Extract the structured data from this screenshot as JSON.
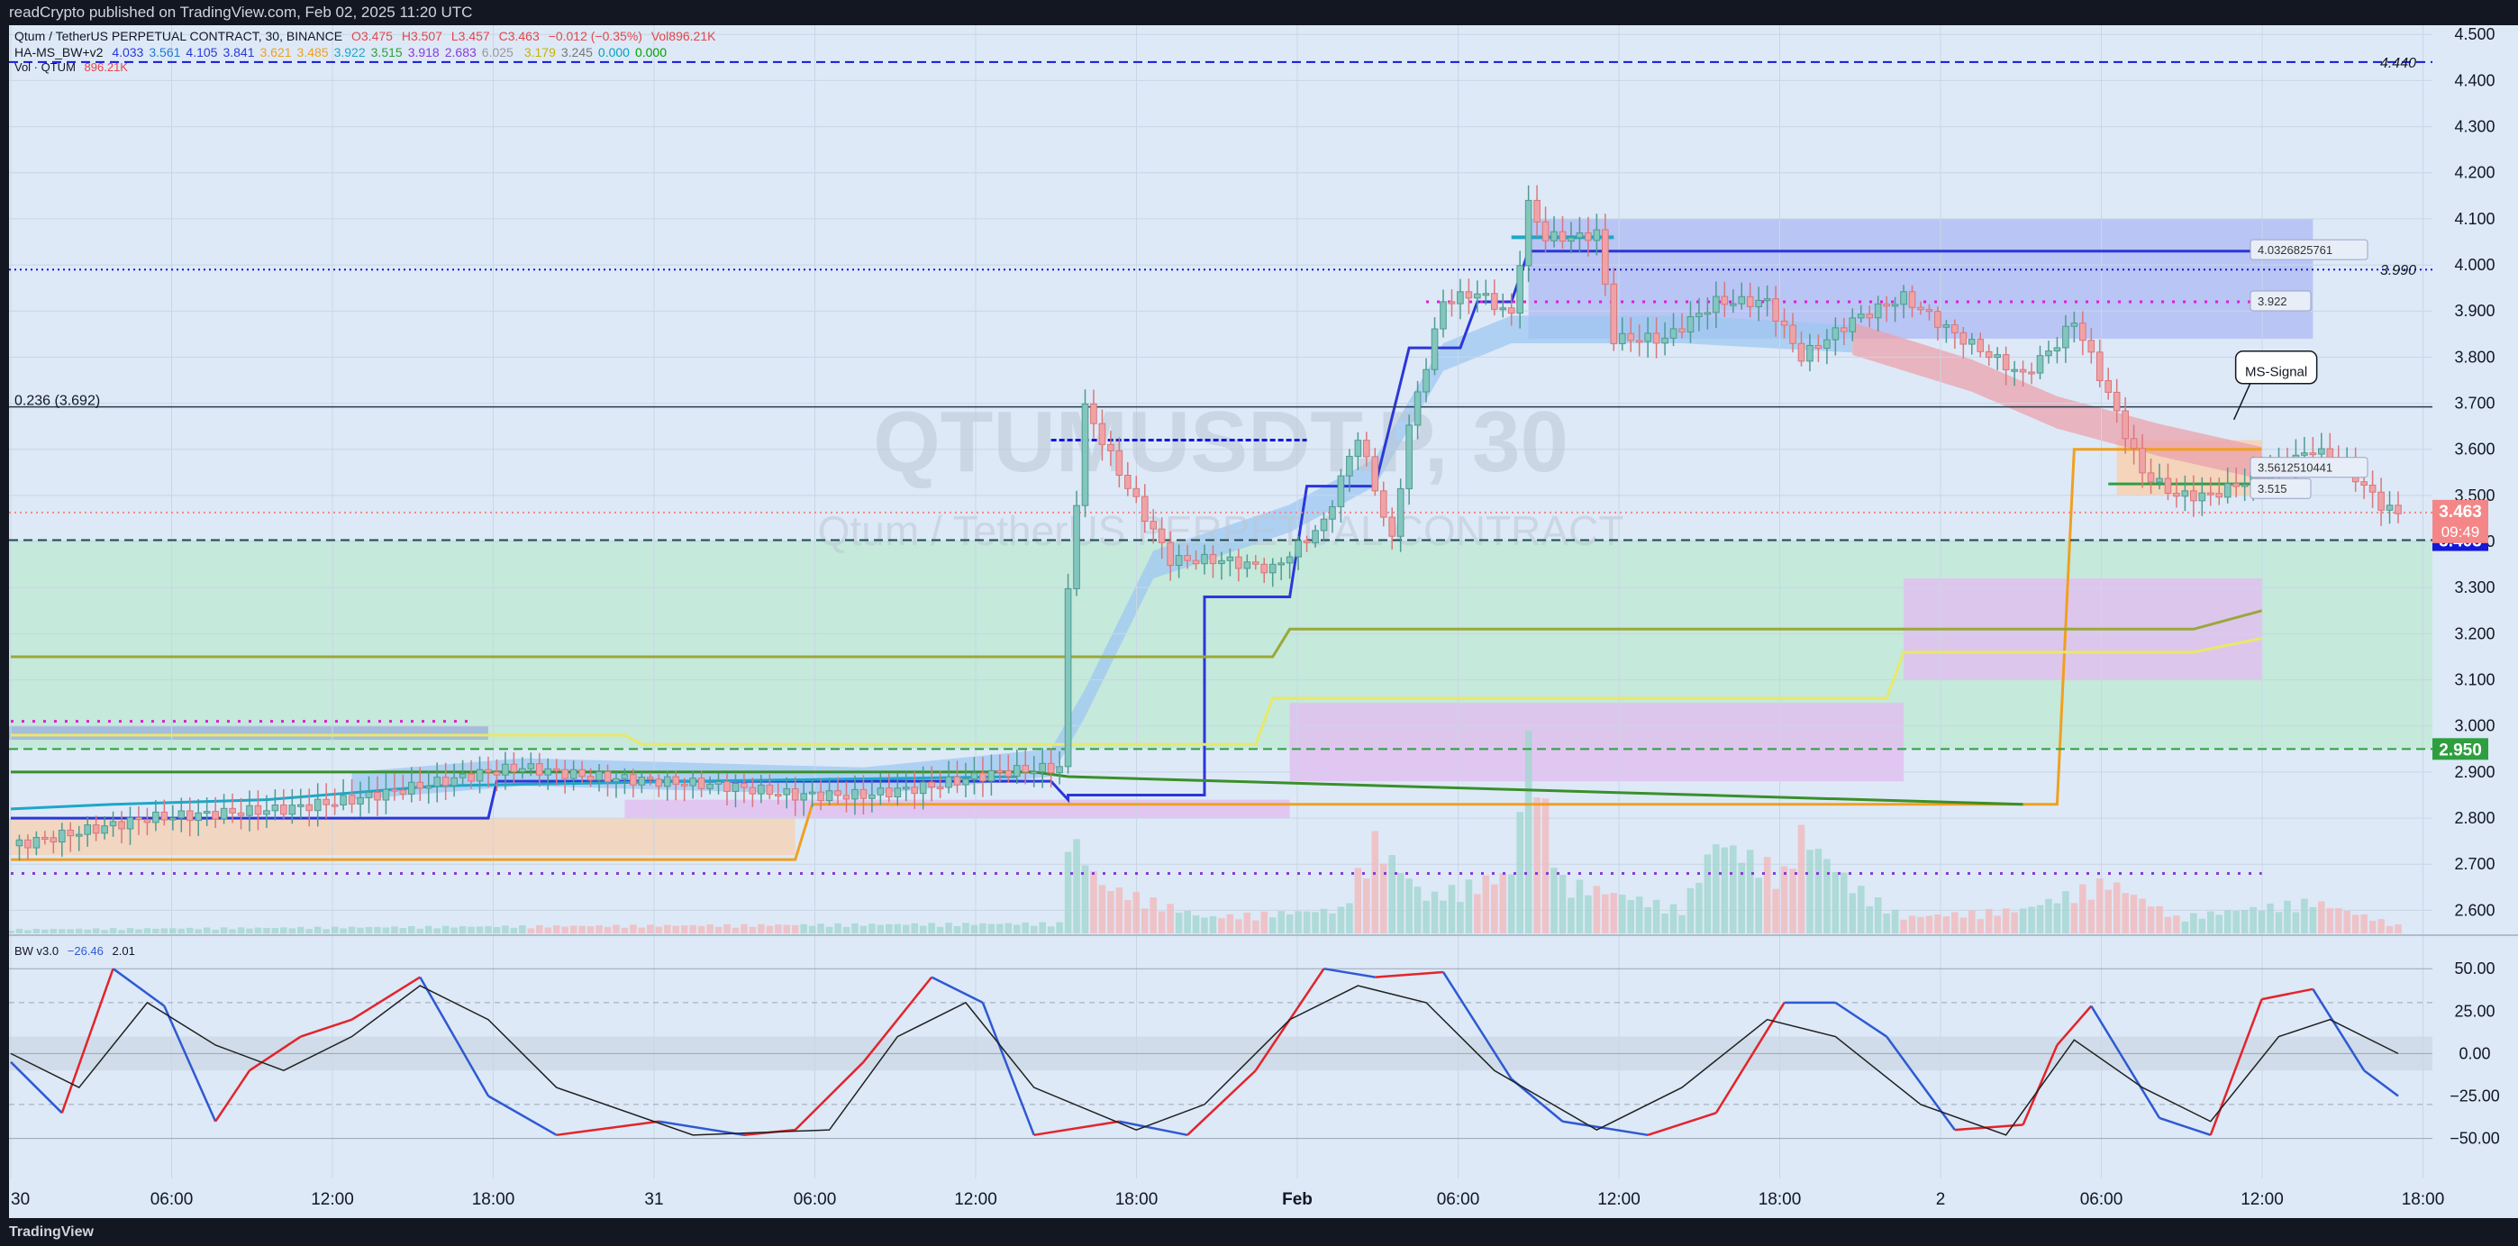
{
  "header": {
    "text": "readCrypto published on TradingView.com, Feb 02, 2025 11:20 UTC"
  },
  "footer": {
    "brand": "TradingView"
  },
  "legend": {
    "line1": {
      "name": "Qtum / TetherUS PERPETUAL CONTRACT, 30, BINANCE",
      "o": "O3.475",
      "h": "H3.507",
      "l": "L3.457",
      "c": "C3.463",
      "chg": "−0.012 (−0.35%)",
      "vol": "Vol896.21K"
    },
    "line2": {
      "name": "HA-MS_BW+v2",
      "values": [
        "4.033",
        "3.561",
        "4.105",
        "3.841",
        "3.621",
        "3.485",
        "3.922",
        "3.515",
        "3.918",
        "2.683",
        "6.025",
        "",
        "3.179",
        "3.245",
        "0.000",
        "0.000"
      ]
    },
    "line3": {
      "name": "Vol · QTUM",
      "value": "896.21K"
    },
    "bw": {
      "name": "BW v3.0",
      "v1": "−26.46",
      "v2": "2.01"
    }
  },
  "colors": {
    "bg": "#dde9f7",
    "up": "#83c6bd",
    "down": "#f0a3a6",
    "accent_blue": "#2b37d8",
    "magenta": "#e11bd6",
    "last_price": "#f48687",
    "level_blue": "#1418d9",
    "level_green": "#2e9f3f"
  },
  "watermark": {
    "symbol": "QTUMUSDT.P, 30",
    "name": "Qtum / TetherUS PERPETUAL CONTRACT"
  },
  "chart_data": [
    {
      "type": "candlestick",
      "title": "Qtum / TetherUS PERPETUAL CONTRACT, 30, BINANCE",
      "ylim": [
        2.55,
        4.52
      ],
      "yticks": [
        "4.500",
        "4.400",
        "4.300",
        "4.200",
        "4.100",
        "4.000",
        "3.900",
        "3.800",
        "3.700",
        "3.600",
        "3.500",
        "3.400",
        "3.300",
        "3.200",
        "3.100",
        "3.000",
        "2.900",
        "2.800",
        "2.700",
        "2.600"
      ],
      "xticks": [
        "30",
        "06:00",
        "12:00",
        "18:00",
        "31",
        "06:00",
        "12:00",
        "18:00",
        "Feb",
        "06:00",
        "12:00",
        "18:00",
        "2",
        "06:00",
        "12:00",
        "18:00"
      ],
      "price_path": [
        [
          0,
          2.74
        ],
        [
          8,
          2.77
        ],
        [
          16,
          2.8
        ],
        [
          24,
          2.81
        ],
        [
          32,
          2.82
        ],
        [
          40,
          2.84
        ],
        [
          48,
          2.87
        ],
        [
          56,
          2.9
        ],
        [
          60,
          2.91
        ],
        [
          68,
          2.89
        ],
        [
          76,
          2.88
        ],
        [
          84,
          2.87
        ],
        [
          92,
          2.85
        ],
        [
          100,
          2.85
        ],
        [
          108,
          2.87
        ],
        [
          116,
          2.9
        ],
        [
          123,
          2.91
        ],
        [
          124,
          3.29
        ],
        [
          126,
          3.69
        ],
        [
          130,
          3.55
        ],
        [
          136,
          3.36
        ],
        [
          142,
          3.36
        ],
        [
          148,
          3.34
        ],
        [
          154,
          3.44
        ],
        [
          158,
          3.63
        ],
        [
          162,
          3.4
        ],
        [
          164,
          3.65
        ],
        [
          168,
          3.92
        ],
        [
          172,
          3.94
        ],
        [
          176,
          3.89
        ],
        [
          178,
          4.13
        ],
        [
          180,
          4.06
        ],
        [
          184,
          4.06
        ],
        [
          186,
          4.07
        ],
        [
          188,
          3.84
        ],
        [
          194,
          3.84
        ],
        [
          200,
          3.92
        ],
        [
          206,
          3.92
        ],
        [
          210,
          3.8
        ],
        [
          216,
          3.88
        ],
        [
          222,
          3.93
        ],
        [
          228,
          3.85
        ],
        [
          236,
          3.76
        ],
        [
          240,
          3.83
        ],
        [
          242,
          3.88
        ],
        [
          246,
          3.72
        ],
        [
          250,
          3.55
        ],
        [
          254,
          3.5
        ],
        [
          258,
          3.5
        ],
        [
          262,
          3.53
        ],
        [
          266,
          3.56
        ],
        [
          270,
          3.6
        ],
        [
          274,
          3.56
        ],
        [
          278,
          3.48
        ],
        [
          280,
          3.46
        ]
      ],
      "volume_path": [
        [
          0,
          10
        ],
        [
          60,
          18
        ],
        [
          123,
          25
        ],
        [
          124,
          250
        ],
        [
          128,
          120
        ],
        [
          140,
          40
        ],
        [
          156,
          60
        ],
        [
          160,
          230
        ],
        [
          166,
          90
        ],
        [
          176,
          150
        ],
        [
          178,
          480
        ],
        [
          182,
          130
        ],
        [
          196,
          60
        ],
        [
          200,
          230
        ],
        [
          208,
          150
        ],
        [
          210,
          250
        ],
        [
          216,
          120
        ],
        [
          222,
          40
        ],
        [
          236,
          60
        ],
        [
          246,
          130
        ],
        [
          254,
          40
        ],
        [
          270,
          80
        ],
        [
          280,
          20
        ]
      ],
      "levels": [
        {
          "price": 4.44,
          "label": "4.440",
          "style": "dashed",
          "color": "#1418d9"
        },
        {
          "price": 3.99,
          "label": "3.990",
          "style": "dotted",
          "color": "#1418d9"
        },
        {
          "price": 3.692,
          "label": "0.236 (3.692)",
          "style": "solid",
          "color": "#2a3a4a"
        },
        {
          "price": 3.403,
          "label": "3.403",
          "style": "dashed",
          "color": "#1a4a50"
        },
        {
          "price": 2.95,
          "label": "2.950",
          "style": "dashed",
          "color": "#2e9f3f"
        },
        {
          "price": 3.463,
          "label": "3.463",
          "style": "dotted",
          "color": "#f48687"
        }
      ],
      "last_price": {
        "value": "3.463",
        "countdown": "09:49"
      },
      "axis_tags": [
        {
          "price": 4.033,
          "text": "4.0326825761"
        },
        {
          "price": 3.922,
          "text": "3.922"
        },
        {
          "price": 3.561,
          "text": "3.5612510441"
        },
        {
          "price": 3.515,
          "text": "3.515"
        }
      ],
      "annotation": {
        "text": "MS-Signal",
        "x": 262,
        "y": 3.77
      }
    },
    {
      "type": "line",
      "title": "BW v3.0",
      "ylim": [
        -55,
        57
      ],
      "yticks": [
        "50.00",
        "25.00",
        "0.00",
        "−25.00",
        "−50.00"
      ],
      "series": [
        {
          "name": "BW fast",
          "color": "#2f59d3",
          "values": [
            [
              0,
              -5
            ],
            [
              6,
              -35
            ],
            [
              12,
              50
            ],
            [
              18,
              28
            ],
            [
              24,
              -40
            ],
            [
              28,
              -10
            ],
            [
              34,
              10
            ],
            [
              40,
              20
            ],
            [
              48,
              45
            ],
            [
              56,
              -25
            ],
            [
              64,
              -48
            ],
            [
              76,
              -40
            ],
            [
              86,
              -48
            ],
            [
              92,
              -45
            ],
            [
              100,
              -5
            ],
            [
              108,
              45
            ],
            [
              114,
              30
            ],
            [
              120,
              -48
            ],
            [
              130,
              -40
            ],
            [
              138,
              -48
            ],
            [
              146,
              -10
            ],
            [
              154,
              50
            ],
            [
              160,
              45
            ],
            [
              168,
              48
            ],
            [
              176,
              -15
            ],
            [
              182,
              -40
            ],
            [
              192,
              -48
            ],
            [
              200,
              -35
            ],
            [
              208,
              30
            ],
            [
              214,
              30
            ],
            [
              220,
              10
            ],
            [
              228,
              -45
            ],
            [
              236,
              -42
            ],
            [
              240,
              5
            ],
            [
              244,
              28
            ],
            [
              252,
              -38
            ],
            [
              258,
              -48
            ],
            [
              264,
              32
            ],
            [
              270,
              38
            ],
            [
              276,
              -10
            ],
            [
              280,
              -25
            ]
          ]
        },
        {
          "name": "BW slow",
          "color": "#202020",
          "values": [
            [
              0,
              0
            ],
            [
              8,
              -20
            ],
            [
              16,
              30
            ],
            [
              24,
              5
            ],
            [
              32,
              -10
            ],
            [
              40,
              10
            ],
            [
              48,
              40
            ],
            [
              56,
              20
            ],
            [
              64,
              -20
            ],
            [
              80,
              -48
            ],
            [
              96,
              -45
            ],
            [
              104,
              10
            ],
            [
              112,
              30
            ],
            [
              120,
              -20
            ],
            [
              132,
              -45
            ],
            [
              140,
              -30
            ],
            [
              150,
              20
            ],
            [
              158,
              40
            ],
            [
              166,
              30
            ],
            [
              174,
              -10
            ],
            [
              186,
              -45
            ],
            [
              196,
              -20
            ],
            [
              206,
              20
            ],
            [
              214,
              10
            ],
            [
              224,
              -30
            ],
            [
              234,
              -48
            ],
            [
              242,
              8
            ],
            [
              250,
              -20
            ],
            [
              258,
              -40
            ],
            [
              266,
              10
            ],
            [
              272,
              20
            ],
            [
              280,
              0
            ]
          ]
        }
      ]
    }
  ]
}
